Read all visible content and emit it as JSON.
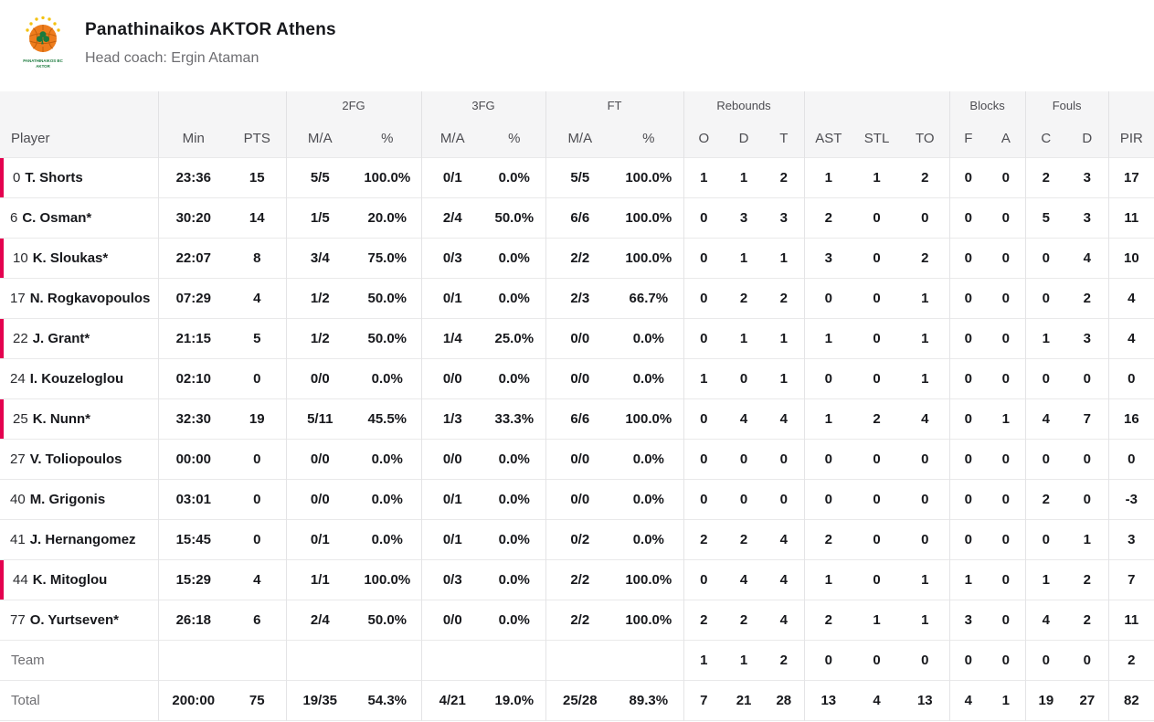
{
  "colors": {
    "accent_red": "#e4014f",
    "header_bg": "#f5f5f6",
    "logo_orange": "#ee7d1d",
    "logo_green": "#1b7a3d",
    "logo_yellow": "#f3c212"
  },
  "team": {
    "title": "Panathinaikos AKTOR Athens",
    "coach": "Head coach: Ergin Ataman",
    "logo_text_line1": "PANATHINAIKOS BC",
    "logo_text_line2": "AKTOR"
  },
  "table": {
    "group_row": [
      {
        "label": "",
        "span": 1
      },
      {
        "label": "",
        "span": 2
      },
      {
        "label": "2FG",
        "span": 2
      },
      {
        "label": "3FG",
        "span": 2
      },
      {
        "label": "FT",
        "span": 2
      },
      {
        "label": "Rebounds",
        "span": 3
      },
      {
        "label": "",
        "span": 3
      },
      {
        "label": "Blocks",
        "span": 2
      },
      {
        "label": "Fouls",
        "span": 2
      },
      {
        "label": "",
        "span": 1
      }
    ],
    "columns": [
      "Player",
      "Min",
      "PTS",
      "M/A",
      "%",
      "M/A",
      "%",
      "M/A",
      "%",
      "O",
      "D",
      "T",
      "AST",
      "STL",
      "TO",
      "F",
      "A",
      "C",
      "D",
      "PIR"
    ],
    "rows": [
      {
        "number": "0",
        "name": "T. Shorts",
        "starter": false,
        "oncourt": true,
        "stats": [
          "23:36",
          "15",
          "5/5",
          "100.0%",
          "0/1",
          "0.0%",
          "5/5",
          "100.0%",
          "1",
          "1",
          "2",
          "1",
          "1",
          "2",
          "0",
          "0",
          "2",
          "3",
          "17"
        ]
      },
      {
        "number": "6",
        "name": "C. Osman",
        "starter": true,
        "oncourt": false,
        "stats": [
          "30:20",
          "14",
          "1/5",
          "20.0%",
          "2/4",
          "50.0%",
          "6/6",
          "100.0%",
          "0",
          "3",
          "3",
          "2",
          "0",
          "0",
          "0",
          "0",
          "5",
          "3",
          "11"
        ]
      },
      {
        "number": "10",
        "name": "K. Sloukas",
        "starter": true,
        "oncourt": true,
        "stats": [
          "22:07",
          "8",
          "3/4",
          "75.0%",
          "0/3",
          "0.0%",
          "2/2",
          "100.0%",
          "0",
          "1",
          "1",
          "3",
          "0",
          "2",
          "0",
          "0",
          "0",
          "4",
          "10"
        ]
      },
      {
        "number": "17",
        "name": "N. Rogkavopoulos",
        "starter": false,
        "oncourt": false,
        "stats": [
          "07:29",
          "4",
          "1/2",
          "50.0%",
          "0/1",
          "0.0%",
          "2/3",
          "66.7%",
          "0",
          "2",
          "2",
          "0",
          "0",
          "1",
          "0",
          "0",
          "0",
          "2",
          "4"
        ]
      },
      {
        "number": "22",
        "name": "J. Grant",
        "starter": true,
        "oncourt": true,
        "stats": [
          "21:15",
          "5",
          "1/2",
          "50.0%",
          "1/4",
          "25.0%",
          "0/0",
          "0.0%",
          "0",
          "1",
          "1",
          "1",
          "0",
          "1",
          "0",
          "0",
          "1",
          "3",
          "4"
        ]
      },
      {
        "number": "24",
        "name": "I. Kouzeloglou",
        "starter": false,
        "oncourt": false,
        "stats": [
          "02:10",
          "0",
          "0/0",
          "0.0%",
          "0/0",
          "0.0%",
          "0/0",
          "0.0%",
          "1",
          "0",
          "1",
          "0",
          "0",
          "1",
          "0",
          "0",
          "0",
          "0",
          "0"
        ]
      },
      {
        "number": "25",
        "name": "K. Nunn",
        "starter": true,
        "oncourt": true,
        "stats": [
          "32:30",
          "19",
          "5/11",
          "45.5%",
          "1/3",
          "33.3%",
          "6/6",
          "100.0%",
          "0",
          "4",
          "4",
          "1",
          "2",
          "4",
          "0",
          "1",
          "4",
          "7",
          "16"
        ]
      },
      {
        "number": "27",
        "name": "V. Toliopoulos",
        "starter": false,
        "oncourt": false,
        "stats": [
          "00:00",
          "0",
          "0/0",
          "0.0%",
          "0/0",
          "0.0%",
          "0/0",
          "0.0%",
          "0",
          "0",
          "0",
          "0",
          "0",
          "0",
          "0",
          "0",
          "0",
          "0",
          "0"
        ]
      },
      {
        "number": "40",
        "name": "M. Grigonis",
        "starter": false,
        "oncourt": false,
        "stats": [
          "03:01",
          "0",
          "0/0",
          "0.0%",
          "0/1",
          "0.0%",
          "0/0",
          "0.0%",
          "0",
          "0",
          "0",
          "0",
          "0",
          "0",
          "0",
          "0",
          "2",
          "0",
          "-3"
        ]
      },
      {
        "number": "41",
        "name": "J. Hernangomez",
        "starter": false,
        "oncourt": false,
        "stats": [
          "15:45",
          "0",
          "0/1",
          "0.0%",
          "0/1",
          "0.0%",
          "0/2",
          "0.0%",
          "2",
          "2",
          "4",
          "2",
          "0",
          "0",
          "0",
          "0",
          "0",
          "1",
          "3"
        ]
      },
      {
        "number": "44",
        "name": "K. Mitoglou",
        "starter": false,
        "oncourt": true,
        "stats": [
          "15:29",
          "4",
          "1/1",
          "100.0%",
          "0/3",
          "0.0%",
          "2/2",
          "100.0%",
          "0",
          "4",
          "4",
          "1",
          "0",
          "1",
          "1",
          "0",
          "1",
          "2",
          "7"
        ]
      },
      {
        "number": "77",
        "name": "O. Yurtseven",
        "starter": true,
        "oncourt": false,
        "stats": [
          "26:18",
          "6",
          "2/4",
          "50.0%",
          "0/0",
          "0.0%",
          "2/2",
          "100.0%",
          "2",
          "2",
          "4",
          "2",
          "1",
          "1",
          "3",
          "0",
          "4",
          "2",
          "11"
        ]
      }
    ],
    "team_row": {
      "label": "Team",
      "stats": [
        "",
        "",
        "",
        "",
        "",
        "",
        "",
        "",
        "1",
        "1",
        "2",
        "0",
        "0",
        "0",
        "0",
        "0",
        "0",
        "0",
        "2"
      ]
    },
    "total_row": {
      "label": "Total",
      "stats": [
        "200:00",
        "75",
        "19/35",
        "54.3%",
        "4/21",
        "19.0%",
        "25/28",
        "89.3%",
        "7",
        "21",
        "28",
        "13",
        "4",
        "13",
        "4",
        "1",
        "19",
        "27",
        "82"
      ]
    }
  }
}
